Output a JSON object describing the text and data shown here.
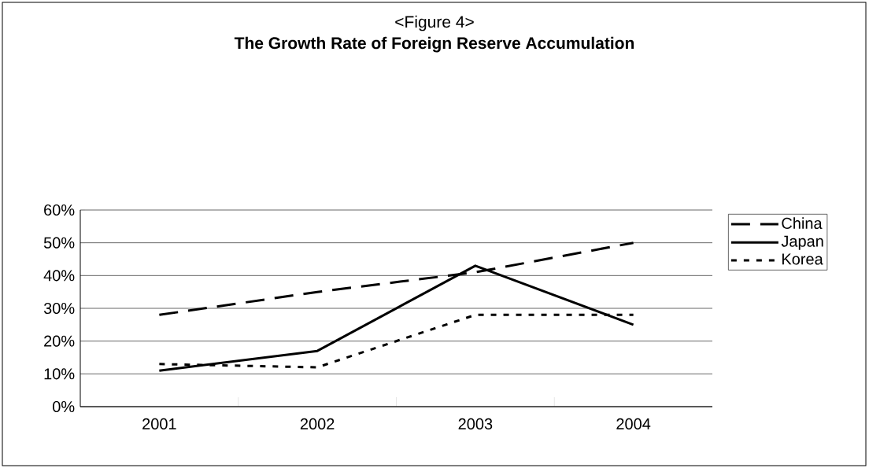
{
  "chart_data": {
    "type": "line",
    "title": "<Figure 4>",
    "subtitle": "The Growth Rate of Foreign Reserve Accumulation",
    "categories": [
      "2001",
      "2002",
      "2003",
      "2004"
    ],
    "series": [
      {
        "name": "China",
        "color": "#000000",
        "line_style": "dashed",
        "values": [
          28,
          35,
          41,
          50
        ]
      },
      {
        "name": "Japan",
        "color": "#000000",
        "line_style": "solid",
        "values": [
          11,
          17,
          43,
          25
        ]
      },
      {
        "name": "Korea",
        "color": "#000000",
        "line_style": "dotted",
        "values": [
          13,
          12,
          28,
          28
        ]
      }
    ],
    "ylim": [
      0,
      60
    ],
    "yticks": [
      {
        "value": 0,
        "label": "0%"
      },
      {
        "value": 10,
        "label": "10%"
      },
      {
        "value": 20,
        "label": "20%"
      },
      {
        "value": 30,
        "label": "30%"
      },
      {
        "value": 40,
        "label": "40%"
      },
      {
        "value": 50,
        "label": "50%"
      },
      {
        "value": 60,
        "label": "60%"
      }
    ],
    "grid": "y",
    "legend": "right",
    "marker": "none"
  }
}
